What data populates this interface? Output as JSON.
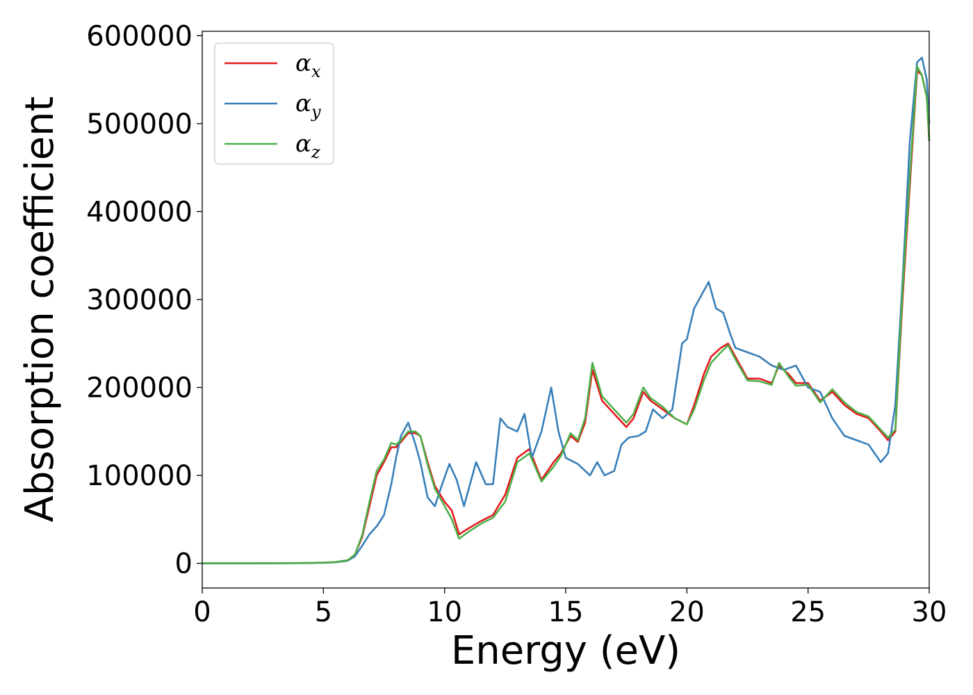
{
  "chart_data": {
    "type": "line",
    "title": "",
    "xlabel": "Energy (eV)",
    "ylabel": "Absorption coefficient",
    "xlim": [
      0,
      30
    ],
    "ylim": [
      -28000,
      605000
    ],
    "xticks": [
      0,
      5,
      10,
      15,
      20,
      25,
      30
    ],
    "yticks": [
      0,
      100000,
      200000,
      300000,
      400000,
      500000,
      600000
    ],
    "grid": false,
    "legend_position": "top-left",
    "series": [
      {
        "name": "αx",
        "sub": "x",
        "color": "#e41a1c",
        "x": [
          0,
          2,
          4,
          5,
          5.5,
          6,
          6.3,
          6.6,
          6.9,
          7.2,
          7.5,
          7.8,
          8.0,
          8.2,
          8.5,
          8.8,
          9.0,
          9.3,
          9.6,
          10.0,
          10.3,
          10.6,
          11.0,
          11.5,
          12.0,
          12.5,
          13.0,
          13.5,
          14.0,
          14.5,
          14.8,
          15.2,
          15.5,
          15.8,
          16.1,
          16.5,
          17.0,
          17.5,
          17.8,
          18.2,
          18.5,
          19.0,
          19.5,
          20.0,
          20.3,
          20.7,
          21.0,
          21.4,
          21.7,
          22.0,
          22.5,
          23.0,
          23.5,
          23.8,
          24.2,
          24.5,
          25.0,
          25.5,
          26.0,
          26.5,
          27.0,
          27.5,
          28.0,
          28.3,
          28.6,
          28.9,
          29.2,
          29.5,
          29.7,
          29.9,
          30.0
        ],
        "y": [
          0,
          0,
          300,
          800,
          1500,
          3500,
          10000,
          30000,
          65000,
          100000,
          115000,
          132000,
          132000,
          138000,
          148000,
          148000,
          145000,
          115000,
          88000,
          70000,
          60000,
          33000,
          40000,
          48000,
          55000,
          78000,
          120000,
          130000,
          95000,
          115000,
          125000,
          145000,
          138000,
          160000,
          220000,
          185000,
          170000,
          155000,
          165000,
          195000,
          185000,
          175000,
          165000,
          158000,
          180000,
          215000,
          235000,
          245000,
          250000,
          235000,
          210000,
          210000,
          205000,
          225000,
          215000,
          205000,
          205000,
          185000,
          195000,
          180000,
          170000,
          165000,
          150000,
          140000,
          150000,
          300000,
          430000,
          560000,
          555000,
          530000,
          480000
        ]
      },
      {
        "name": "αy",
        "sub": "y",
        "color": "#377eb8",
        "x": [
          0,
          2,
          4,
          5,
          5.5,
          6,
          6.3,
          6.6,
          6.9,
          7.2,
          7.5,
          7.8,
          8.0,
          8.2,
          8.5,
          8.8,
          9.0,
          9.3,
          9.6,
          9.9,
          10.2,
          10.5,
          10.8,
          11.0,
          11.3,
          11.7,
          12.0,
          12.3,
          12.6,
          13.0,
          13.3,
          13.6,
          14.0,
          14.4,
          14.7,
          15.0,
          15.5,
          16.0,
          16.3,
          16.6,
          17.0,
          17.3,
          17.6,
          18.0,
          18.3,
          18.6,
          19.0,
          19.4,
          19.8,
          20.0,
          20.3,
          20.6,
          20.9,
          21.2,
          21.5,
          21.8,
          22.0,
          22.5,
          23.0,
          23.5,
          24.0,
          24.5,
          25.0,
          25.5,
          26.0,
          26.5,
          27.0,
          27.5,
          28.0,
          28.3,
          28.6,
          28.9,
          29.2,
          29.5,
          29.7,
          29.9,
          30.0
        ],
        "y": [
          0,
          0,
          200,
          600,
          1200,
          3000,
          8000,
          20000,
          33000,
          42000,
          55000,
          90000,
          120000,
          145000,
          160000,
          135000,
          115000,
          75000,
          65000,
          90000,
          113000,
          95000,
          65000,
          85000,
          115000,
          90000,
          90000,
          165000,
          155000,
          150000,
          170000,
          120000,
          150000,
          200000,
          150000,
          120000,
          113000,
          100000,
          115000,
          100000,
          105000,
          135000,
          143000,
          145000,
          150000,
          175000,
          165000,
          175000,
          250000,
          255000,
          290000,
          305000,
          320000,
          290000,
          285000,
          260000,
          245000,
          240000,
          235000,
          225000,
          220000,
          225000,
          200000,
          195000,
          165000,
          145000,
          140000,
          135000,
          115000,
          125000,
          180000,
          320000,
          480000,
          570000,
          575000,
          550000,
          500000
        ]
      },
      {
        "name": "αz",
        "sub": "z",
        "color": "#4daf4a",
        "x": [
          0,
          2,
          4,
          5,
          5.5,
          6,
          6.3,
          6.6,
          6.9,
          7.2,
          7.5,
          7.8,
          8.0,
          8.2,
          8.5,
          8.8,
          9.0,
          9.3,
          9.6,
          10.0,
          10.3,
          10.6,
          11.0,
          11.5,
          12.0,
          12.5,
          13.0,
          13.5,
          14.0,
          14.5,
          14.8,
          15.2,
          15.5,
          15.8,
          16.1,
          16.5,
          17.0,
          17.5,
          17.8,
          18.2,
          18.5,
          19.0,
          19.5,
          20.0,
          20.3,
          20.7,
          21.0,
          21.4,
          21.7,
          22.0,
          22.5,
          23.0,
          23.5,
          23.8,
          24.2,
          24.5,
          25.0,
          25.5,
          26.0,
          26.5,
          27.0,
          27.5,
          28.0,
          28.3,
          28.6,
          28.9,
          29.2,
          29.5,
          29.7,
          29.9,
          30.0
        ],
        "y": [
          0,
          0,
          300,
          800,
          1500,
          3500,
          10000,
          32000,
          70000,
          105000,
          118000,
          137000,
          135000,
          140000,
          150000,
          150000,
          145000,
          112000,
          85000,
          65000,
          50000,
          28000,
          36000,
          45000,
          52000,
          70000,
          115000,
          125000,
          93000,
          110000,
          122000,
          148000,
          140000,
          165000,
          228000,
          190000,
          175000,
          160000,
          170000,
          200000,
          188000,
          178000,
          165000,
          158000,
          175000,
          208000,
          228000,
          240000,
          248000,
          232000,
          208000,
          207000,
          203000,
          228000,
          212000,
          202000,
          203000,
          183000,
          198000,
          183000,
          172000,
          167000,
          152000,
          143000,
          152000,
          310000,
          440000,
          565000,
          555000,
          530000,
          480000
        ]
      }
    ]
  }
}
